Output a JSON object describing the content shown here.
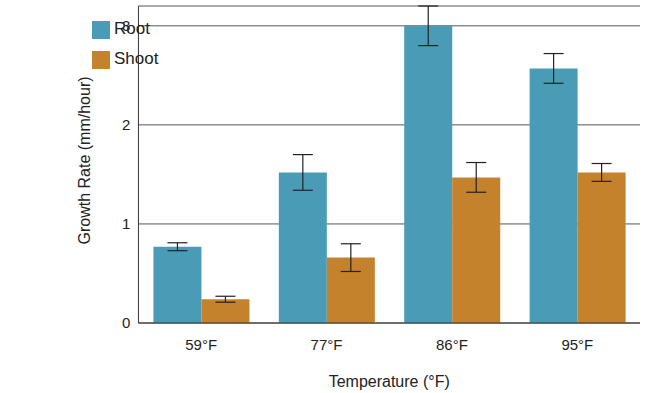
{
  "chart_data": {
    "type": "bar",
    "x_label": "Temperature (°F)",
    "y_label": "Growth Rate (mm/hour)",
    "categories": [
      "59°F",
      "77°F",
      "86°F",
      "95°F"
    ],
    "series": [
      {
        "name": "Root",
        "color": "#4a9cb6",
        "values": [
          0.77,
          1.52,
          3.0,
          2.57
        ],
        "errors": [
          0.04,
          0.18,
          0.2,
          0.15
        ]
      },
      {
        "name": "Shoot",
        "color": "#c5822c",
        "values": [
          0.24,
          0.66,
          1.47,
          1.52
        ],
        "errors": [
          0.03,
          0.14,
          0.15,
          0.09
        ]
      }
    ],
    "ylim": [
      0,
      3.2
    ],
    "yticks": [
      0,
      1,
      2,
      3
    ],
    "grid": true,
    "legend": "upper left"
  }
}
